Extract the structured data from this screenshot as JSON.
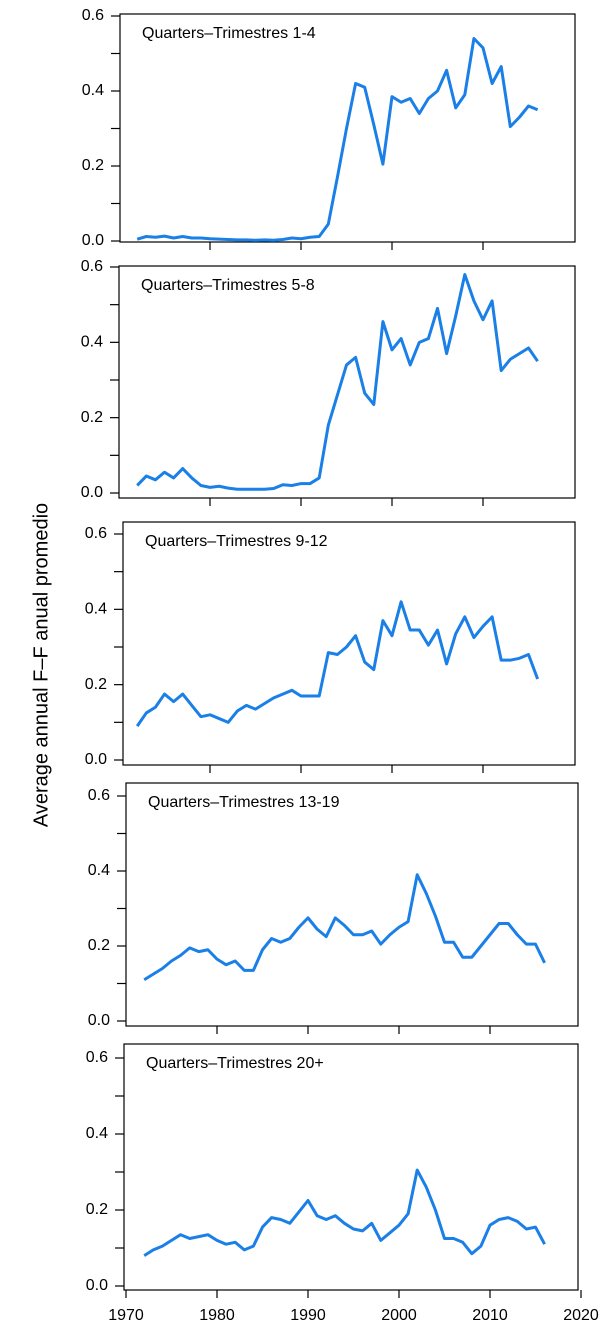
{
  "ylabel": "Average annual F–F anual promedio",
  "chart_data": [
    {
      "type": "line",
      "title": "Quarters–Trimestres 1-4",
      "x": [
        1972,
        1973,
        1974,
        1975,
        1976,
        1977,
        1978,
        1979,
        1980,
        1981,
        1982,
        1983,
        1984,
        1985,
        1986,
        1987,
        1988,
        1989,
        1990,
        1991,
        1992,
        1993,
        1994,
        1995,
        1996,
        1997,
        1998,
        1999,
        2000,
        2001,
        2002,
        2003,
        2004,
        2005,
        2006,
        2007,
        2008,
        2009,
        2010,
        2011,
        2012,
        2013,
        2014,
        2015,
        2016
      ],
      "series": [
        {
          "color": "#1a7fe6",
          "values": [
            0.005,
            0.012,
            0.01,
            0.013,
            0.008,
            0.012,
            0.008,
            0.008,
            0.006,
            0.005,
            0.004,
            0.003,
            0.003,
            0.002,
            0.003,
            0.002,
            0.004,
            0.008,
            0.006,
            0.01,
            0.012,
            0.045,
            0.17,
            0.3,
            0.42,
            0.41,
            0.31,
            0.205,
            0.385,
            0.37,
            0.38,
            0.34,
            0.38,
            0.4,
            0.455,
            0.355,
            0.39,
            0.54,
            0.515,
            0.42,
            0.465,
            0.305,
            0.33,
            0.36,
            0.35
          ]
        }
      ],
      "xlim": [
        1970,
        2020
      ],
      "xticks": [
        1980,
        1990,
        2000,
        2010
      ],
      "show_xtick_labels": false,
      "ylim": [
        0,
        0.6
      ],
      "yticks": [
        {
          "value": 0,
          "label": "0.0"
        },
        0.2,
        0.4,
        0.6
      ],
      "minor_yticks": [
        0.1,
        0.3,
        0.5
      ]
    },
    {
      "type": "line",
      "title": "Quarters–Trimestres 5-8",
      "x": [
        1972,
        1973,
        1974,
        1975,
        1976,
        1977,
        1978,
        1979,
        1980,
        1981,
        1982,
        1983,
        1984,
        1985,
        1986,
        1987,
        1988,
        1989,
        1990,
        1991,
        1992,
        1993,
        1994,
        1995,
        1996,
        1997,
        1998,
        1999,
        2000,
        2001,
        2002,
        2003,
        2004,
        2005,
        2006,
        2007,
        2008,
        2009,
        2010,
        2011,
        2012,
        2013,
        2014,
        2015,
        2016
      ],
      "series": [
        {
          "color": "#1a7fe6",
          "values": [
            0.02,
            0.045,
            0.035,
            0.055,
            0.04,
            0.065,
            0.04,
            0.02,
            0.015,
            0.018,
            0.013,
            0.01,
            0.01,
            0.01,
            0.01,
            0.012,
            0.022,
            0.02,
            0.025,
            0.025,
            0.04,
            0.18,
            0.26,
            0.34,
            0.36,
            0.265,
            0.235,
            0.455,
            0.38,
            0.41,
            0.34,
            0.4,
            0.41,
            0.49,
            0.37,
            0.47,
            0.58,
            0.51,
            0.46,
            0.51,
            0.325,
            0.355,
            0.37,
            0.385,
            0.35
          ]
        }
      ],
      "xlim": [
        1970,
        2020
      ],
      "xticks": [
        1980,
        1990,
        2000,
        2010
      ],
      "show_xtick_labels": false,
      "ylim": [
        0,
        0.6
      ],
      "yticks": [
        {
          "value": 0,
          "label": "0.0"
        },
        0.2,
        0.4,
        0.6
      ],
      "minor_yticks": [
        0.1,
        0.3,
        0.5
      ]
    },
    {
      "type": "line",
      "title": "Quarters–Trimestres 9-12",
      "x": [
        1972,
        1973,
        1974,
        1975,
        1976,
        1977,
        1978,
        1979,
        1980,
        1981,
        1982,
        1983,
        1984,
        1985,
        1986,
        1987,
        1988,
        1989,
        1990,
        1991,
        1992,
        1993,
        1994,
        1995,
        1996,
        1997,
        1998,
        1999,
        2000,
        2001,
        2002,
        2003,
        2004,
        2005,
        2006,
        2007,
        2008,
        2009,
        2010,
        2011,
        2012,
        2013,
        2014,
        2015,
        2016
      ],
      "series": [
        {
          "color": "#1a7fe6",
          "values": [
            0.09,
            0.125,
            0.14,
            0.175,
            0.155,
            0.175,
            0.145,
            0.115,
            0.12,
            0.11,
            0.1,
            0.13,
            0.145,
            0.135,
            0.15,
            0.165,
            0.175,
            0.185,
            0.17,
            0.17,
            0.17,
            0.285,
            0.28,
            0.3,
            0.33,
            0.26,
            0.24,
            0.37,
            0.33,
            0.42,
            0.345,
            0.345,
            0.305,
            0.345,
            0.255,
            0.335,
            0.38,
            0.325,
            0.355,
            0.38,
            0.265,
            0.265,
            0.27,
            0.28,
            0.215
          ]
        }
      ],
      "xlim": [
        1970,
        2020
      ],
      "xticks": [
        1980,
        1990,
        2000,
        2010
      ],
      "show_xtick_labels": false,
      "ylim": [
        0,
        0.6
      ],
      "yticks": [
        {
          "value": 0,
          "label": "0.0"
        },
        0.2,
        0.4,
        0.6
      ],
      "minor_yticks": [
        0.1,
        0.3,
        0.5
      ]
    },
    {
      "type": "line",
      "title": "Quarters–Trimestres 13-19",
      "x": [
        1972,
        1973,
        1974,
        1975,
        1976,
        1977,
        1978,
        1979,
        1980,
        1981,
        1982,
        1983,
        1984,
        1985,
        1986,
        1987,
        1988,
        1989,
        1990,
        1991,
        1992,
        1993,
        1994,
        1995,
        1996,
        1997,
        1998,
        1999,
        2000,
        2001,
        2002,
        2003,
        2004,
        2005,
        2006,
        2007,
        2008,
        2009,
        2010,
        2011,
        2012,
        2013,
        2014,
        2015,
        2016
      ],
      "series": [
        {
          "color": "#1a7fe6",
          "values": [
            0.11,
            0.125,
            0.14,
            0.16,
            0.175,
            0.195,
            0.185,
            0.19,
            0.165,
            0.15,
            0.16,
            0.135,
            0.135,
            0.19,
            0.22,
            0.21,
            0.22,
            0.25,
            0.275,
            0.245,
            0.225,
            0.275,
            0.255,
            0.23,
            0.23,
            0.24,
            0.205,
            0.23,
            0.25,
            0.265,
            0.39,
            0.34,
            0.28,
            0.21,
            0.21,
            0.17,
            0.17,
            0.2,
            0.23,
            0.26,
            0.26,
            0.23,
            0.205,
            0.205,
            0.155
          ]
        }
      ],
      "xlim": [
        1970,
        2020
      ],
      "xticks": [
        1980,
        1990,
        2000,
        2010
      ],
      "show_xtick_labels": false,
      "ylim": [
        0,
        0.6
      ],
      "yticks": [
        {
          "value": 0,
          "label": "0.0"
        },
        0.2,
        0.4,
        0.6
      ],
      "minor_yticks": [
        0.1,
        0.3,
        0.5
      ]
    },
    {
      "type": "line",
      "title": "Quarters–Trimestres 20+",
      "x": [
        1972,
        1973,
        1974,
        1975,
        1976,
        1977,
        1978,
        1979,
        1980,
        1981,
        1982,
        1983,
        1984,
        1985,
        1986,
        1987,
        1988,
        1989,
        1990,
        1991,
        1992,
        1993,
        1994,
        1995,
        1996,
        1997,
        1998,
        1999,
        2000,
        2001,
        2002,
        2003,
        2004,
        2005,
        2006,
        2007,
        2008,
        2009,
        2010,
        2011,
        2012,
        2013,
        2014,
        2015,
        2016
      ],
      "series": [
        {
          "color": "#1a7fe6",
          "values": [
            0.08,
            0.095,
            0.105,
            0.12,
            0.135,
            0.125,
            0.13,
            0.135,
            0.12,
            0.11,
            0.115,
            0.095,
            0.105,
            0.155,
            0.18,
            0.175,
            0.165,
            0.195,
            0.225,
            0.185,
            0.175,
            0.185,
            0.165,
            0.15,
            0.145,
            0.165,
            0.12,
            0.14,
            0.16,
            0.19,
            0.305,
            0.26,
            0.2,
            0.125,
            0.125,
            0.115,
            0.085,
            0.105,
            0.16,
            0.175,
            0.18,
            0.17,
            0.15,
            0.155,
            0.11
          ]
        }
      ],
      "xlim": [
        1970,
        2020
      ],
      "xticks": [
        1970,
        1980,
        1990,
        2000,
        2010,
        2020
      ],
      "show_xtick_labels": true,
      "ylim": [
        0,
        0.6
      ],
      "yticks": [
        {
          "value": 0,
          "label": "0.0"
        },
        0.2,
        0.4,
        0.6
      ],
      "minor_yticks": [
        0.1,
        0.3,
        0.5
      ]
    }
  ]
}
